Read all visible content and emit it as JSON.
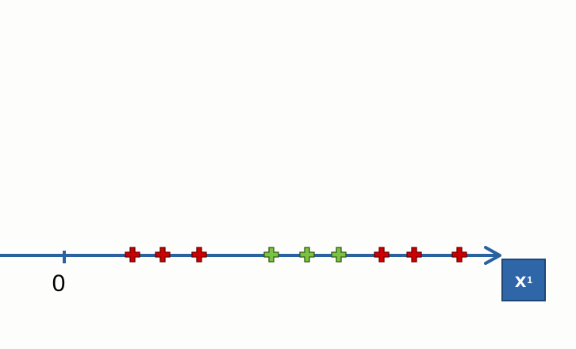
{
  "axis": {
    "origin_label": "0",
    "variable_main": "x",
    "variable_sub": "1",
    "color": "#2a62a0"
  },
  "points": [
    {
      "class": "negative",
      "color": "#cc0000"
    },
    {
      "class": "negative",
      "color": "#cc0000"
    },
    {
      "class": "negative",
      "color": "#cc0000"
    },
    {
      "class": "positive",
      "color": "#7cc242"
    },
    {
      "class": "positive",
      "color": "#7cc242"
    },
    {
      "class": "positive",
      "color": "#7cc242"
    },
    {
      "class": "negative",
      "color": "#cc0000"
    },
    {
      "class": "negative",
      "color": "#cc0000"
    },
    {
      "class": "negative",
      "color": "#cc0000"
    }
  ],
  "badge_color": "#2e66a8"
}
